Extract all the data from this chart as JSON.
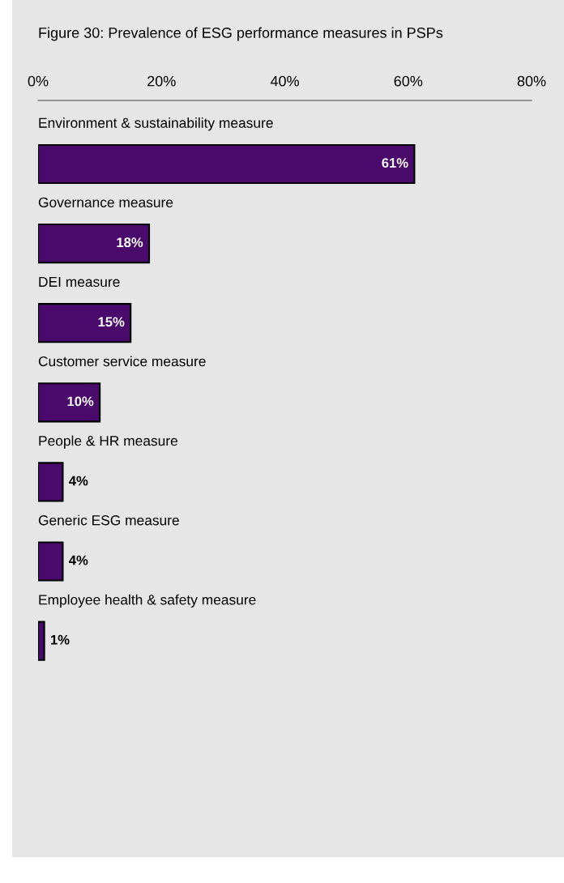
{
  "chart_data": {
    "type": "bar",
    "orientation": "horizontal",
    "title": "Figure 30: Prevalence of ESG performance measures in PSPs",
    "categories": [
      "Environment & sustainability measure",
      "Governance measure",
      "DEI measure",
      "Customer service measure",
      "People & HR measure",
      "Generic ESG measure",
      "Employee health & safety measure"
    ],
    "values": [
      61,
      18,
      15,
      10,
      4,
      4,
      1
    ],
    "value_labels": [
      "61%",
      "18%",
      "15%",
      "10%",
      "4%",
      "4%",
      "1%"
    ],
    "color": "#4a0a6b",
    "xlim": [
      0,
      80
    ],
    "xticks": [
      {
        "value": 0,
        "label": "0%"
      },
      {
        "value": 20,
        "label": "20%"
      },
      {
        "value": 40,
        "label": "40%"
      },
      {
        "value": 60,
        "label": "60%"
      },
      {
        "value": 80,
        "label": "80%"
      }
    ],
    "grid": false
  }
}
